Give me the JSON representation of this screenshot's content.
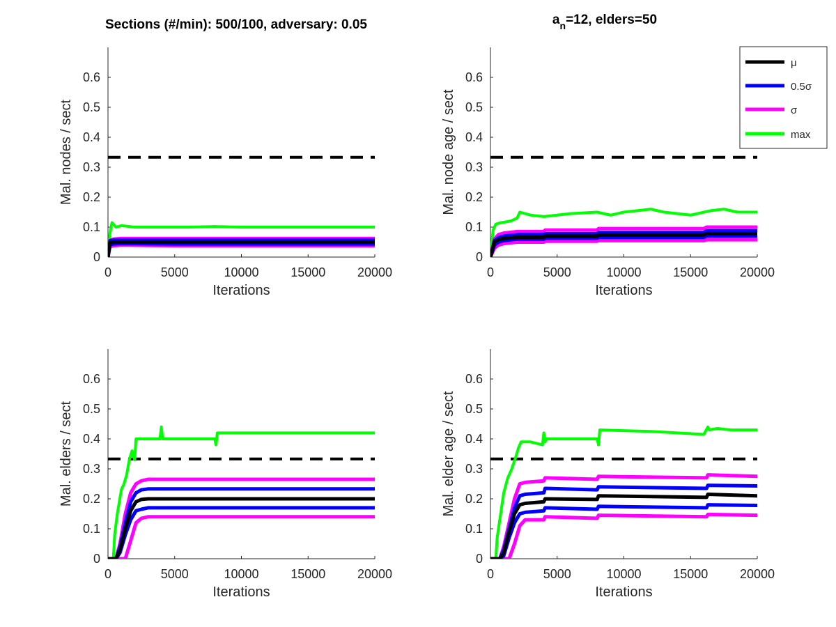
{
  "titles": {
    "left": "Sections (#/min): 500/100, adversary: 0.05",
    "right_prefix": "a",
    "right_subscript": "n",
    "right_rest": "=12, elders=50"
  },
  "colors": {
    "mu": "#000000",
    "half_sigma": "#0000ff",
    "sigma": "#ff00ff",
    "max": "#00ff00",
    "threshold": "#000000",
    "axis": "#262626"
  },
  "legend": {
    "placement": "top-right",
    "entries": [
      {
        "key": "mu",
        "label": "μ",
        "color": "#000000"
      },
      {
        "key": "half_sigma",
        "label": "0.5σ",
        "color": "#0000ff"
      },
      {
        "key": "sigma",
        "label": "σ",
        "color": "#ff00ff"
      },
      {
        "key": "max",
        "label": "max",
        "color": "#00ff00"
      }
    ]
  },
  "chart_data": [
    {
      "id": "top-left",
      "type": "line",
      "xlabel": "Iterations",
      "ylabel": "Mal. nodes / sect",
      "xlim": [
        0,
        20000
      ],
      "ylim": [
        0,
        0.7
      ],
      "xticks": [
        "0",
        "5000",
        "10000",
        "15000",
        "20000"
      ],
      "yticks": [
        "0",
        "0.1",
        "0.2",
        "0.3",
        "0.4",
        "0.5",
        "0.6"
      ],
      "threshold": 0.333,
      "series": [
        {
          "name": "max",
          "key": "max",
          "x": [
            0,
            150,
            300,
            600,
            1000,
            2000,
            4000,
            6000,
            8000,
            10000,
            12000,
            14000,
            16000,
            18000,
            20000
          ],
          "y": [
            0.0,
            0.08,
            0.115,
            0.1,
            0.105,
            0.1,
            0.1,
            0.1,
            0.102,
            0.1,
            0.1,
            0.1,
            0.1,
            0.1,
            0.1
          ]
        },
        {
          "name": "σ",
          "key": "sigma",
          "x": [
            0,
            150,
            400,
            1000,
            5000,
            10000,
            15000,
            20000
          ],
          "y": [
            0.0,
            0.035,
            0.038,
            0.04,
            0.038,
            0.038,
            0.038,
            0.038
          ]
        },
        {
          "name": "σ",
          "key": "sigma",
          "x": [
            0,
            150,
            400,
            1000,
            5000,
            10000,
            15000,
            20000
          ],
          "y": [
            0.0,
            0.055,
            0.06,
            0.062,
            0.062,
            0.062,
            0.062,
            0.062
          ]
        },
        {
          "name": "0.5σ",
          "key": "half_sigma",
          "x": [
            0,
            150,
            400,
            1000,
            5000,
            10000,
            15000,
            20000
          ],
          "y": [
            0.0,
            0.042,
            0.044,
            0.045,
            0.044,
            0.044,
            0.044,
            0.044
          ]
        },
        {
          "name": "0.5σ",
          "key": "half_sigma",
          "x": [
            0,
            150,
            400,
            1000,
            5000,
            10000,
            15000,
            20000
          ],
          "y": [
            0.0,
            0.055,
            0.056,
            0.056,
            0.056,
            0.056,
            0.056,
            0.056
          ]
        },
        {
          "name": "μ",
          "key": "mu",
          "x": [
            0,
            150,
            400,
            1000,
            5000,
            10000,
            15000,
            20000
          ],
          "y": [
            0.0,
            0.048,
            0.05,
            0.05,
            0.05,
            0.05,
            0.05,
            0.05
          ]
        }
      ]
    },
    {
      "id": "top-right",
      "type": "line",
      "xlabel": "Iterations",
      "ylabel": "Mal. node age / sect",
      "xlim": [
        0,
        20000
      ],
      "ylim": [
        0,
        0.7
      ],
      "xticks": [
        "0",
        "5000",
        "10000",
        "15000",
        "20000"
      ],
      "yticks": [
        "0",
        "0.1",
        "0.2",
        "0.3",
        "0.4",
        "0.5",
        "0.6"
      ],
      "threshold": 0.333,
      "series": [
        {
          "name": "max",
          "key": "max",
          "x": [
            0,
            200,
            400,
            800,
            1500,
            2000,
            2200,
            3000,
            4000,
            6000,
            8000,
            9000,
            10000,
            12000,
            13000,
            15000,
            16500,
            17500,
            18500,
            20000
          ],
          "y": [
            0.0,
            0.09,
            0.11,
            0.115,
            0.12,
            0.13,
            0.15,
            0.14,
            0.135,
            0.145,
            0.15,
            0.14,
            0.15,
            0.16,
            0.15,
            0.14,
            0.155,
            0.16,
            0.15,
            0.15
          ]
        },
        {
          "name": "σ",
          "key": "sigma",
          "x": [
            0,
            300,
            600,
            1000,
            2000,
            4000,
            4100,
            8000,
            8100,
            16000,
            16200,
            20000
          ],
          "y": [
            0.0,
            0.03,
            0.04,
            0.045,
            0.05,
            0.05,
            0.053,
            0.053,
            0.055,
            0.055,
            0.058,
            0.058
          ]
        },
        {
          "name": "σ",
          "key": "sigma",
          "x": [
            0,
            300,
            600,
            1000,
            2000,
            4000,
            4100,
            8000,
            8100,
            16000,
            16200,
            20000
          ],
          "y": [
            0.0,
            0.06,
            0.075,
            0.08,
            0.085,
            0.085,
            0.09,
            0.09,
            0.095,
            0.095,
            0.1,
            0.1
          ]
        },
        {
          "name": "0.5σ",
          "key": "half_sigma",
          "x": [
            0,
            300,
            600,
            1000,
            2000,
            4000,
            4100,
            8000,
            8100,
            16000,
            16200,
            20000
          ],
          "y": [
            0.0,
            0.04,
            0.05,
            0.055,
            0.06,
            0.06,
            0.063,
            0.063,
            0.066,
            0.066,
            0.07,
            0.07
          ]
        },
        {
          "name": "0.5σ",
          "key": "half_sigma",
          "x": [
            0,
            300,
            600,
            1000,
            2000,
            4000,
            4100,
            8000,
            8100,
            16000,
            16200,
            20000
          ],
          "y": [
            0.0,
            0.055,
            0.065,
            0.07,
            0.075,
            0.075,
            0.078,
            0.078,
            0.082,
            0.082,
            0.088,
            0.088
          ]
        },
        {
          "name": "μ",
          "key": "mu",
          "x": [
            0,
            300,
            600,
            1000,
            2000,
            4000,
            4100,
            8000,
            8100,
            16000,
            16200,
            20000
          ],
          "y": [
            0.0,
            0.05,
            0.058,
            0.062,
            0.066,
            0.066,
            0.07,
            0.07,
            0.074,
            0.074,
            0.078,
            0.078
          ]
        }
      ]
    },
    {
      "id": "bottom-left",
      "type": "line",
      "xlabel": "Iterations",
      "ylabel": "Mal. elders / sect",
      "xlim": [
        0,
        20000
      ],
      "ylim": [
        0,
        0.7
      ],
      "xticks": [
        "0",
        "5000",
        "10000",
        "15000",
        "20000"
      ],
      "yticks": [
        "0",
        "0.1",
        "0.2",
        "0.3",
        "0.4",
        "0.5",
        "0.6"
      ],
      "threshold": 0.333,
      "series": [
        {
          "name": "max",
          "key": "max",
          "x": [
            0,
            400,
            500,
            700,
            1000,
            1200,
            1400,
            1600,
            1800,
            2000,
            2100,
            3000,
            3900,
            4000,
            4100,
            8000,
            8100,
            8200,
            10000,
            15000,
            20000
          ],
          "y": [
            0.0,
            0.0,
            0.08,
            0.15,
            0.23,
            0.25,
            0.28,
            0.33,
            0.36,
            0.33,
            0.4,
            0.4,
            0.4,
            0.44,
            0.4,
            0.4,
            0.38,
            0.42,
            0.42,
            0.42,
            0.42
          ]
        },
        {
          "name": "σ",
          "key": "sigma",
          "x": [
            0,
            600,
            900,
            1300,
            1700,
            2100,
            2500,
            3000,
            4000,
            20000
          ],
          "y": [
            0.0,
            0.0,
            0.0,
            0.0,
            0.06,
            0.12,
            0.135,
            0.14,
            0.14,
            0.14
          ]
        },
        {
          "name": "σ",
          "key": "sigma",
          "x": [
            0,
            600,
            900,
            1300,
            1700,
            2100,
            2500,
            3000,
            4000,
            20000
          ],
          "y": [
            0.0,
            0.0,
            0.05,
            0.15,
            0.22,
            0.25,
            0.26,
            0.265,
            0.265,
            0.265
          ]
        },
        {
          "name": "0.5σ",
          "key": "half_sigma",
          "x": [
            0,
            600,
            900,
            1300,
            1700,
            2100,
            2500,
            3000,
            4000,
            20000
          ],
          "y": [
            0.0,
            0.0,
            0.02,
            0.08,
            0.13,
            0.16,
            0.165,
            0.17,
            0.17,
            0.17
          ]
        },
        {
          "name": "0.5σ",
          "key": "half_sigma",
          "x": [
            0,
            600,
            900,
            1300,
            1700,
            2100,
            2500,
            3000,
            4000,
            20000
          ],
          "y": [
            0.0,
            0.0,
            0.04,
            0.12,
            0.19,
            0.22,
            0.23,
            0.233,
            0.233,
            0.233
          ]
        },
        {
          "name": "μ",
          "key": "mu",
          "x": [
            0,
            600,
            900,
            1300,
            1700,
            2100,
            2500,
            3000,
            4000,
            20000
          ],
          "y": [
            0.0,
            0.0,
            0.03,
            0.1,
            0.16,
            0.19,
            0.198,
            0.2,
            0.2,
            0.2
          ]
        }
      ]
    },
    {
      "id": "bottom-right",
      "type": "line",
      "xlabel": "Iterations",
      "ylabel": "Mal. elder age / sect",
      "xlim": [
        0,
        20000
      ],
      "ylim": [
        0,
        0.7
      ],
      "xticks": [
        "0",
        "5000",
        "10000",
        "15000",
        "20000"
      ],
      "yticks": [
        "0",
        "0.1",
        "0.2",
        "0.3",
        "0.4",
        "0.5",
        "0.6"
      ],
      "threshold": 0.333,
      "series": [
        {
          "name": "max",
          "key": "max",
          "x": [
            0,
            400,
            500,
            700,
            1000,
            1300,
            1600,
            1900,
            2100,
            2300,
            3000,
            3900,
            4000,
            4100,
            4200,
            8000,
            8100,
            8200,
            12000,
            16000,
            16300,
            16400,
            17000,
            18000,
            20000
          ],
          "y": [
            0.0,
            0.0,
            0.07,
            0.13,
            0.22,
            0.27,
            0.3,
            0.34,
            0.37,
            0.39,
            0.39,
            0.38,
            0.42,
            0.39,
            0.4,
            0.4,
            0.38,
            0.43,
            0.425,
            0.415,
            0.44,
            0.43,
            0.435,
            0.43,
            0.43
          ]
        },
        {
          "name": "σ",
          "key": "sigma",
          "x": [
            0,
            700,
            1000,
            1400,
            1800,
            2200,
            2600,
            4000,
            4100,
            8000,
            8100,
            16200,
            16300,
            20000
          ],
          "y": [
            0.0,
            0.0,
            0.0,
            0.0,
            0.05,
            0.11,
            0.13,
            0.13,
            0.14,
            0.135,
            0.145,
            0.14,
            0.148,
            0.145
          ]
        },
        {
          "name": "σ",
          "key": "sigma",
          "x": [
            0,
            700,
            1000,
            1400,
            1800,
            2200,
            2600,
            4000,
            4100,
            8000,
            8100,
            16200,
            16300,
            20000
          ],
          "y": [
            0.0,
            0.0,
            0.04,
            0.12,
            0.2,
            0.25,
            0.255,
            0.26,
            0.27,
            0.265,
            0.275,
            0.27,
            0.28,
            0.275
          ]
        },
        {
          "name": "0.5σ",
          "key": "half_sigma",
          "x": [
            0,
            700,
            1000,
            1400,
            1800,
            2200,
            2600,
            4000,
            4100,
            8000,
            8100,
            16200,
            16300,
            20000
          ],
          "y": [
            0.0,
            0.0,
            0.01,
            0.07,
            0.12,
            0.15,
            0.155,
            0.16,
            0.17,
            0.165,
            0.175,
            0.17,
            0.18,
            0.178
          ]
        },
        {
          "name": "0.5σ",
          "key": "half_sigma",
          "x": [
            0,
            700,
            1000,
            1400,
            1800,
            2200,
            2600,
            4000,
            4100,
            8000,
            8100,
            16200,
            16300,
            20000
          ],
          "y": [
            0.0,
            0.0,
            0.03,
            0.1,
            0.17,
            0.21,
            0.215,
            0.22,
            0.235,
            0.23,
            0.24,
            0.235,
            0.245,
            0.243
          ]
        },
        {
          "name": "μ",
          "key": "mu",
          "x": [
            0,
            700,
            1000,
            1400,
            1800,
            2200,
            2600,
            4000,
            4100,
            8000,
            8100,
            16200,
            16300,
            20000
          ],
          "y": [
            0.0,
            0.0,
            0.02,
            0.09,
            0.15,
            0.18,
            0.185,
            0.19,
            0.2,
            0.198,
            0.21,
            0.205,
            0.215,
            0.21
          ]
        }
      ]
    }
  ]
}
